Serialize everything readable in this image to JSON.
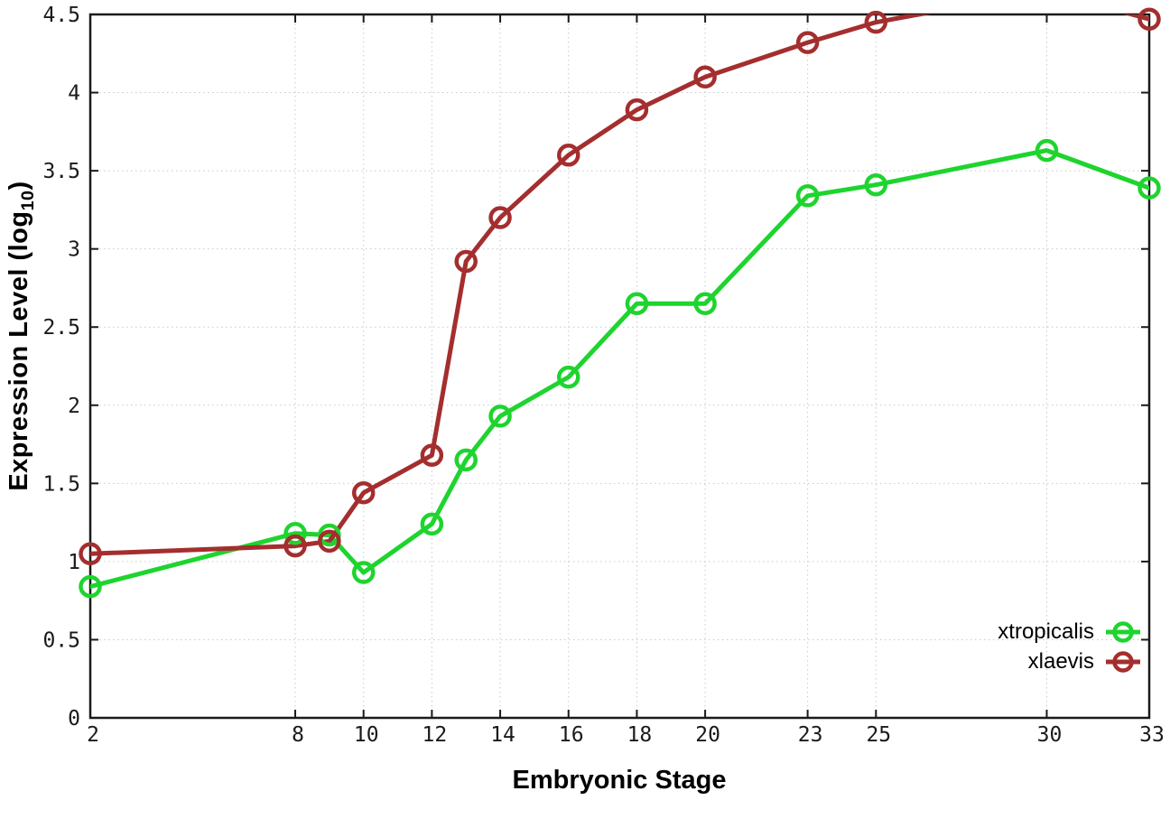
{
  "chart_data": {
    "type": "line",
    "title": "",
    "xlabel": "Embryonic Stage",
    "ylabel": "Expression Level (log10)",
    "ylabel_prefix": "Expression Level (log",
    "ylabel_subscript": "10",
    "ylabel_suffix": ")",
    "xlim": [
      2,
      33
    ],
    "ylim": [
      0,
      4.5
    ],
    "x_ticks": [
      "2",
      "8",
      "10",
      "12",
      "14",
      "16",
      "18",
      "20",
      "23",
      "25",
      "30",
      "33"
    ],
    "y_ticks": [
      "0",
      "0.5",
      "1",
      "1.5",
      "2",
      "2.5",
      "3",
      "3.5",
      "4",
      "4.5"
    ],
    "grid": true,
    "legend_position": "bottom-right",
    "marker": "open-circle",
    "x": [
      2,
      8,
      9,
      10,
      12,
      13,
      14,
      16,
      18,
      20,
      23,
      25,
      30,
      33
    ],
    "series": [
      {
        "name": "xtropicalis",
        "color": "#1ED42E",
        "values": [
          0.84,
          1.18,
          1.17,
          0.93,
          1.24,
          1.65,
          1.93,
          2.18,
          2.65,
          2.65,
          3.34,
          3.41,
          3.63,
          3.39
        ]
      },
      {
        "name": "xlaevis",
        "color": "#A42E2E",
        "values": [
          1.05,
          1.1,
          1.13,
          1.44,
          1.68,
          2.92,
          3.2,
          3.6,
          3.89,
          4.1,
          4.32,
          4.45,
          4.65,
          4.47
        ]
      }
    ],
    "colors": {
      "axis": "#1a1a1a",
      "grid": "#c9c9c9",
      "tick_text": "#1a1a1a"
    }
  }
}
